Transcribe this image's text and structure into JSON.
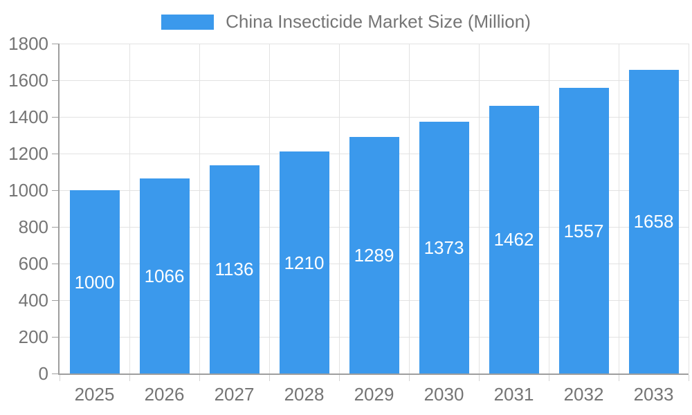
{
  "legend": {
    "label": "China Insecticide Market Size (Million)"
  },
  "chart_data": {
    "type": "bar",
    "title": "China Insecticide Market Size (Million)",
    "categories": [
      "2025",
      "2026",
      "2027",
      "2028",
      "2029",
      "2030",
      "2031",
      "2032",
      "2033"
    ],
    "values": [
      1000,
      1066,
      1136,
      1210,
      1289,
      1373,
      1462,
      1557,
      1658
    ],
    "xlabel": "",
    "ylabel": "",
    "ylim": [
      0,
      1800
    ],
    "ytick_step": 200,
    "grid": true,
    "legend_position": "top",
    "value_labels": "inside-center",
    "colors": {
      "bar": "#3B99EC",
      "value_text": "#FFFFFF",
      "axis_text": "#757575",
      "grid": "#E2E2E2",
      "axis_line": "#9E9E9E"
    }
  }
}
